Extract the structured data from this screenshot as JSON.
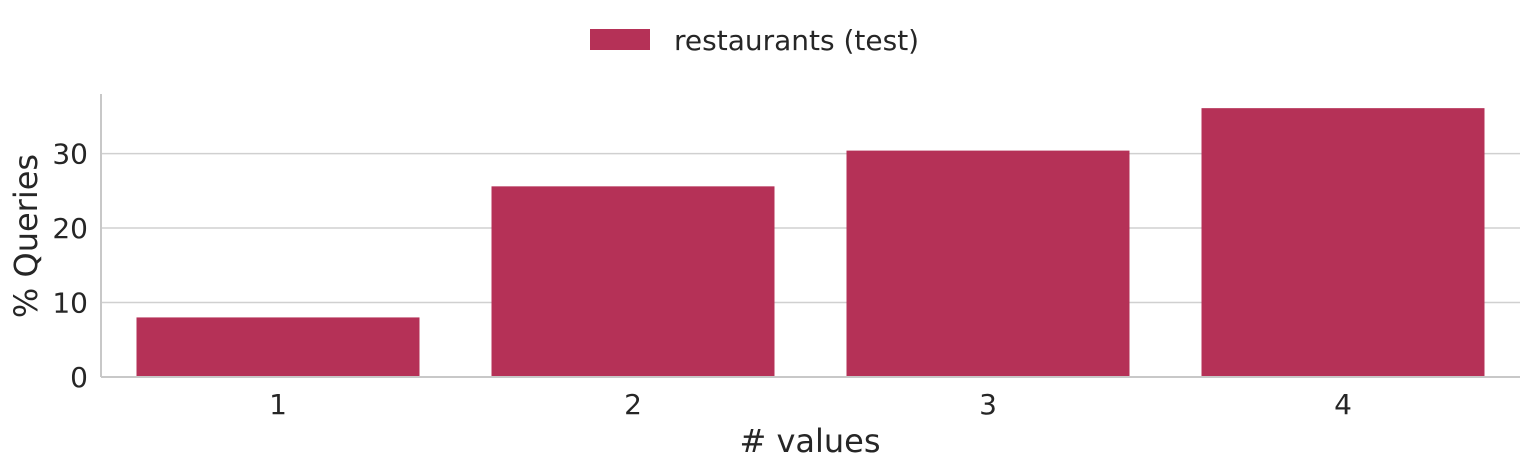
{
  "chart_data": {
    "type": "bar",
    "categories": [
      "1",
      "2",
      "3",
      "4"
    ],
    "series": [
      {
        "name": "restaurants (test)",
        "values": [
          8.0,
          25.6,
          30.4,
          36.1
        ],
        "color": "#b53157"
      }
    ],
    "xlabel": "# values",
    "ylabel": "% Queries",
    "ylim": [
      0,
      38
    ],
    "yticks": [
      0,
      10,
      20,
      30
    ],
    "grid": "horizontal",
    "legend_position": "top-center"
  }
}
